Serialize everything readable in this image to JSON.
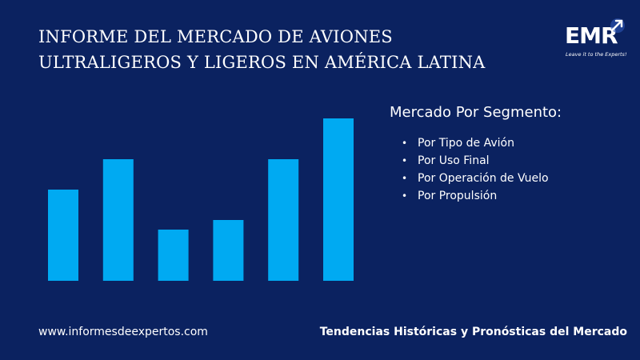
{
  "header": {
    "title_line1": "INFORME DEL MERCADO DE AVIONES",
    "title_line2": "ULTRALIGEROS  Y LIGEROS EN AMÉRICA LATINA"
  },
  "logo": {
    "text": "EMR",
    "tagline": "Leave it to the Experts!"
  },
  "segments": {
    "title": "Mercado Por Segmento:",
    "items": [
      "Por Tipo de Avión",
      "Por Uso Final",
      "Por Operación de Vuelo",
      "Por Propulsión"
    ]
  },
  "footer": {
    "website": "www.informesdeexpertos.com",
    "tagline": "Tendencias Históricas y Pronósticas del Mercado"
  },
  "colors": {
    "background": "#0b2260",
    "bar": "#00aaf2",
    "text": "#ffffff"
  },
  "chart_data": {
    "type": "bar",
    "categories": [
      "",
      "",
      "",
      "",
      "",
      ""
    ],
    "values": [
      114,
      152,
      64,
      76,
      152,
      203
    ],
    "ylim": [
      0,
      203
    ],
    "grid": false
  }
}
